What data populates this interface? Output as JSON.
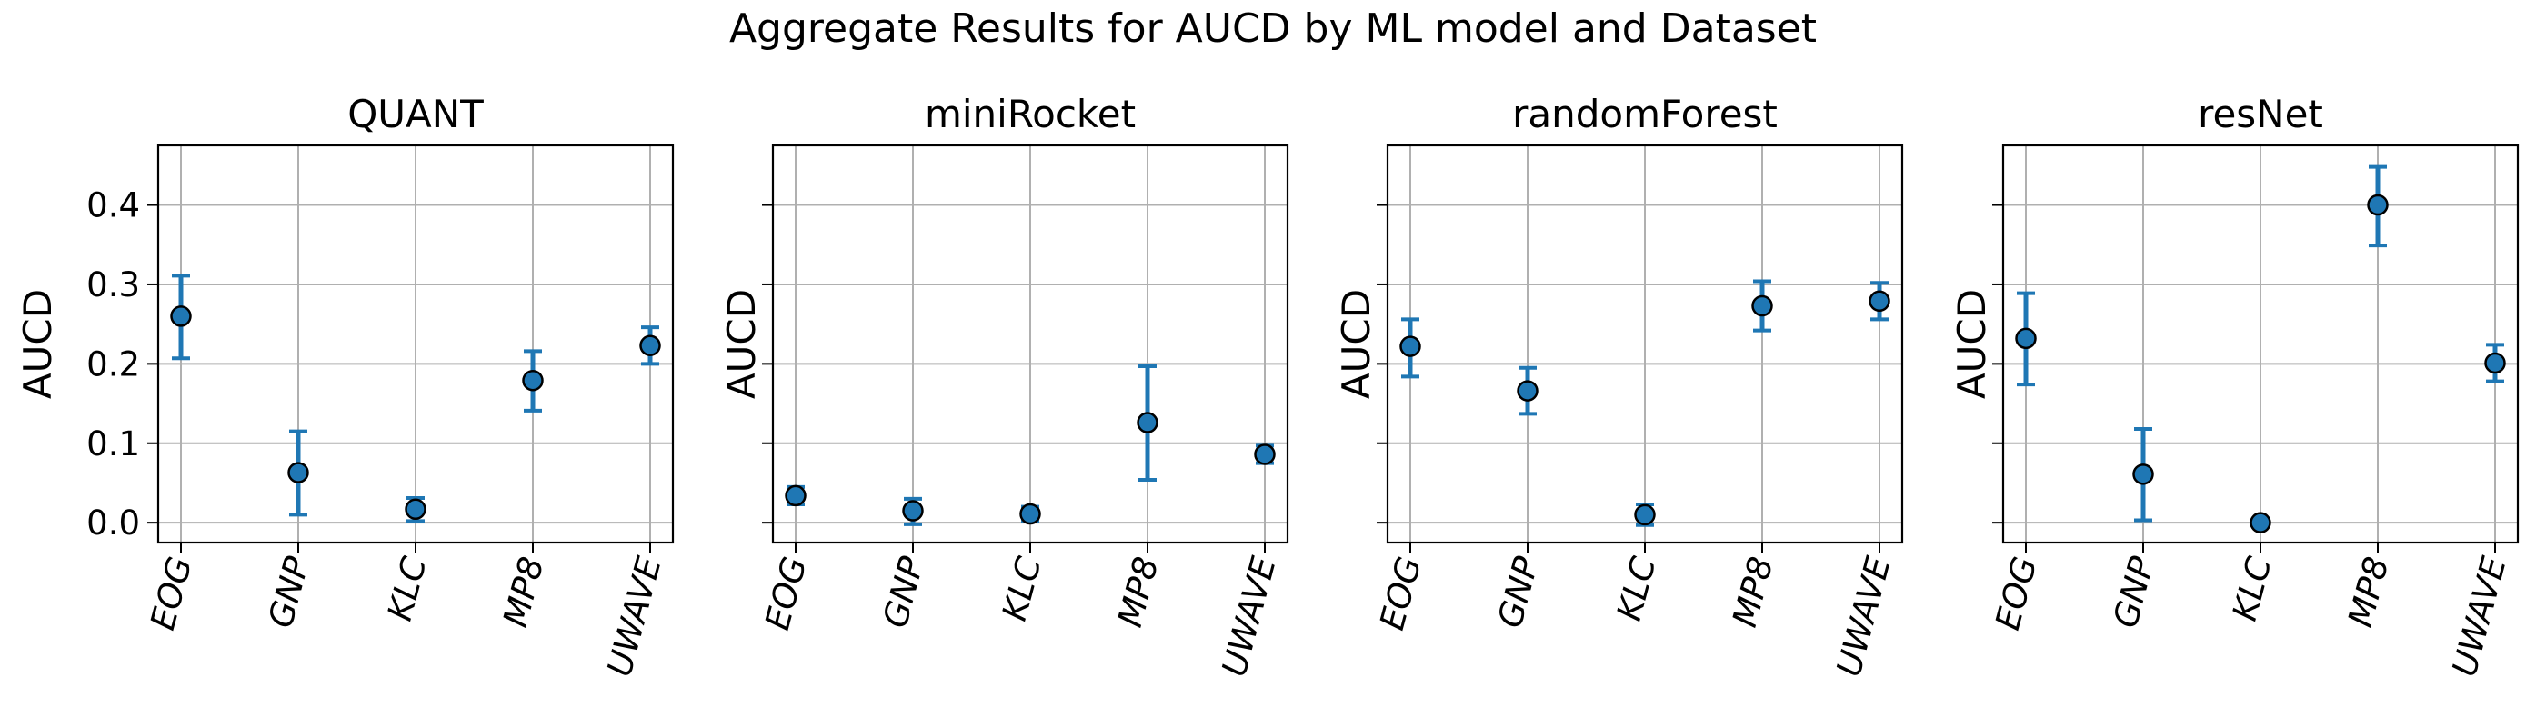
{
  "chart_data": {
    "type": "scatter",
    "title": "Aggregate Results for AUCD by ML model and Dataset",
    "ylabel": "AUCD",
    "ylim": [
      -0.025,
      0.475
    ],
    "yticks": [
      "0.0",
      "0.1",
      "0.2",
      "0.3",
      "0.4"
    ],
    "categories": [
      "EOG",
      "GNP",
      "KLC",
      "MP8",
      "UWAVE"
    ],
    "grid": true,
    "marker_color": "#1f77b4",
    "errorbar_color": "#1f77b4",
    "panels": [
      {
        "title": "QUANT",
        "values": [
          0.26,
          0.063,
          0.017,
          0.179,
          0.223
        ],
        "err_low": [
          0.207,
          0.01,
          0.002,
          0.141,
          0.2
        ],
        "err_high": [
          0.311,
          0.115,
          0.031,
          0.216,
          0.246
        ]
      },
      {
        "title": "miniRocket",
        "values": [
          0.034,
          0.015,
          0.011,
          0.126,
          0.086
        ],
        "err_low": [
          0.023,
          -0.002,
          0.002,
          0.054,
          0.075
        ],
        "err_high": [
          0.045,
          0.03,
          0.02,
          0.197,
          0.097
        ]
      },
      {
        "title": "randomForest",
        "values": [
          0.222,
          0.166,
          0.01,
          0.273,
          0.279
        ],
        "err_low": [
          0.184,
          0.137,
          -0.003,
          0.242,
          0.256
        ],
        "err_high": [
          0.256,
          0.195,
          0.023,
          0.304,
          0.302
        ]
      },
      {
        "title": "resNet",
        "values": [
          0.232,
          0.061,
          0.0,
          0.4,
          0.201
        ],
        "err_low": [
          0.174,
          0.003,
          0.0,
          0.349,
          0.178
        ],
        "err_high": [
          0.289,
          0.118,
          0.0,
          0.448,
          0.224
        ]
      }
    ]
  }
}
